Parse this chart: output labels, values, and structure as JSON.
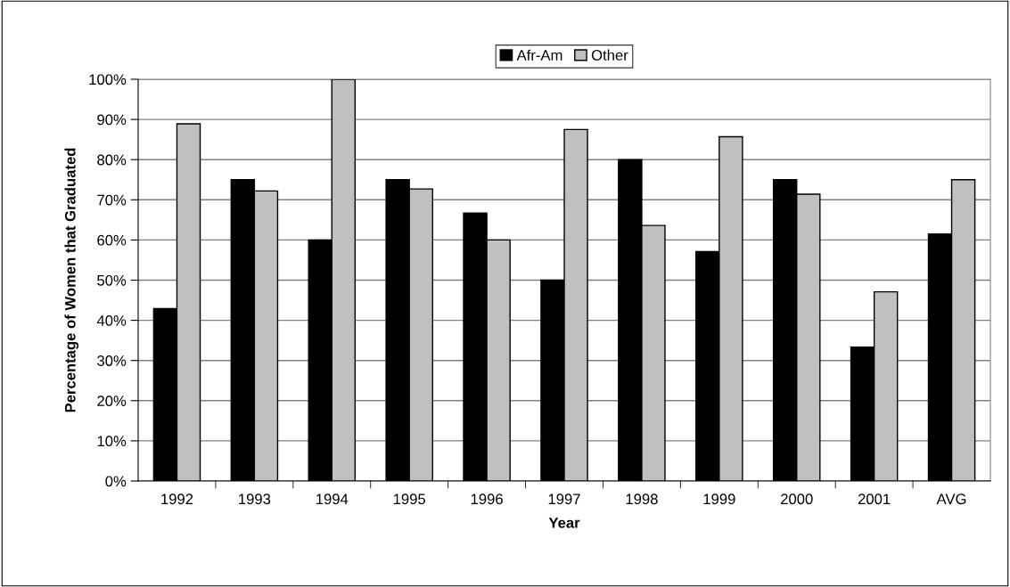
{
  "chart_data": {
    "type": "bar",
    "xlabel": "Year",
    "ylabel": "Percentage of Women that Graduated",
    "categories": [
      "1992",
      "1993",
      "1994",
      "1995",
      "1996",
      "1997",
      "1998",
      "1999",
      "2000",
      "2001",
      "AVG"
    ],
    "series": [
      {
        "name": "Afr-Am",
        "color": "#000000",
        "values": [
          42.9,
          75.0,
          60.0,
          75.0,
          66.7,
          50.0,
          80.0,
          57.1,
          75.0,
          33.3,
          61.5
        ]
      },
      {
        "name": "Other",
        "color": "#c0c0c0",
        "values": [
          88.9,
          72.2,
          100.0,
          72.7,
          60.0,
          87.5,
          63.6,
          85.7,
          71.4,
          47.1,
          75.0
        ]
      }
    ],
    "ylim": [
      0,
      100
    ],
    "yticks": [
      {
        "value": 0,
        "label": "0%"
      },
      {
        "value": 10,
        "label": "10%"
      },
      {
        "value": 20,
        "label": "20%"
      },
      {
        "value": 30,
        "label": "30%"
      },
      {
        "value": 40,
        "label": "40%"
      },
      {
        "value": 50,
        "label": "50%"
      },
      {
        "value": 60,
        "label": "60%"
      },
      {
        "value": 70,
        "label": "70%"
      },
      {
        "value": 80,
        "label": "80%"
      },
      {
        "value": 90,
        "label": "90%"
      },
      {
        "value": 100,
        "label": "100%"
      }
    ],
    "grid": "y",
    "legend": "top"
  }
}
